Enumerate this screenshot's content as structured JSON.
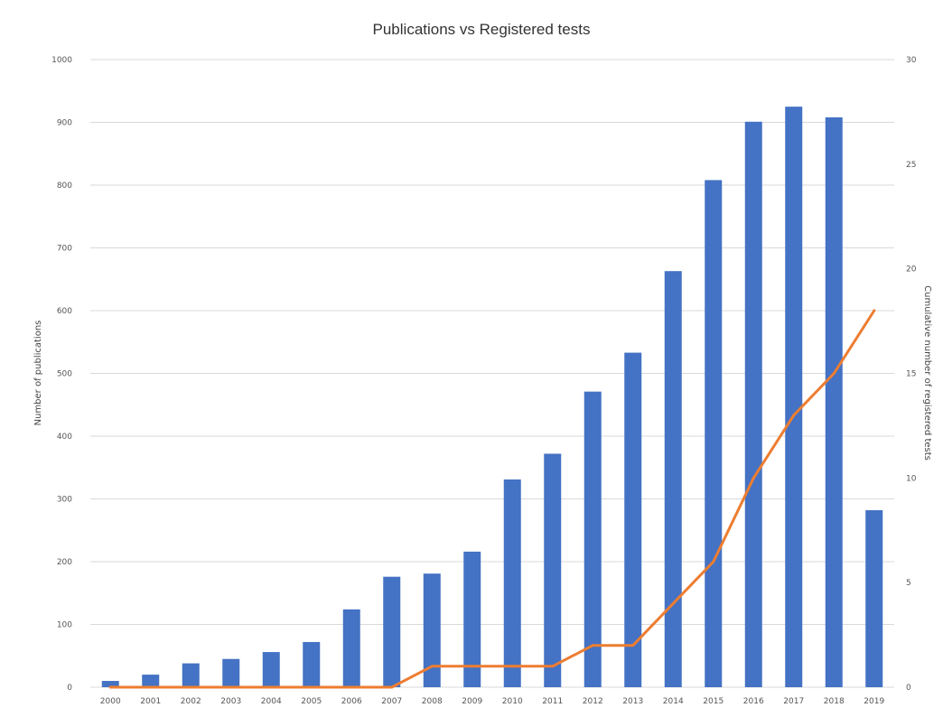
{
  "chart_data": {
    "type": "bar",
    "title": "Publications vs Registered tests",
    "ylabel": "Number of publications",
    "y2label": "Cumulative number of registered tests",
    "xlabel": "",
    "categories": [
      "2000",
      "2001",
      "2002",
      "2003",
      "2004",
      "2005",
      "2006",
      "2007",
      "2008",
      "2009",
      "2010",
      "2011",
      "2012",
      "2013",
      "2014",
      "2015",
      "2016",
      "2017",
      "2018",
      "2019"
    ],
    "series": [
      {
        "type": "bar",
        "axis": "left",
        "color": "#4472c4",
        "values": [
          10,
          20,
          38,
          45,
          56,
          72,
          124,
          176,
          181,
          216,
          331,
          372,
          471,
          533,
          663,
          808,
          901,
          925,
          908,
          282
        ]
      },
      {
        "type": "line",
        "axis": "right",
        "color": "#ed7d31",
        "values": [
          0,
          0,
          0,
          0,
          0,
          0,
          0,
          0,
          1,
          1,
          1,
          1,
          2,
          2,
          4,
          6,
          10,
          13,
          15,
          18
        ]
      }
    ],
    "ylim": [
      0,
      1000
    ],
    "y2lim": [
      0,
      30
    ],
    "yticks": [
      "0",
      "100",
      "200",
      "300",
      "400",
      "500",
      "600",
      "700",
      "800",
      "900",
      "1000"
    ],
    "y2ticks": [
      "0",
      "5",
      "10",
      "15",
      "20",
      "25",
      "30"
    ],
    "grid": true,
    "legend": "none"
  }
}
